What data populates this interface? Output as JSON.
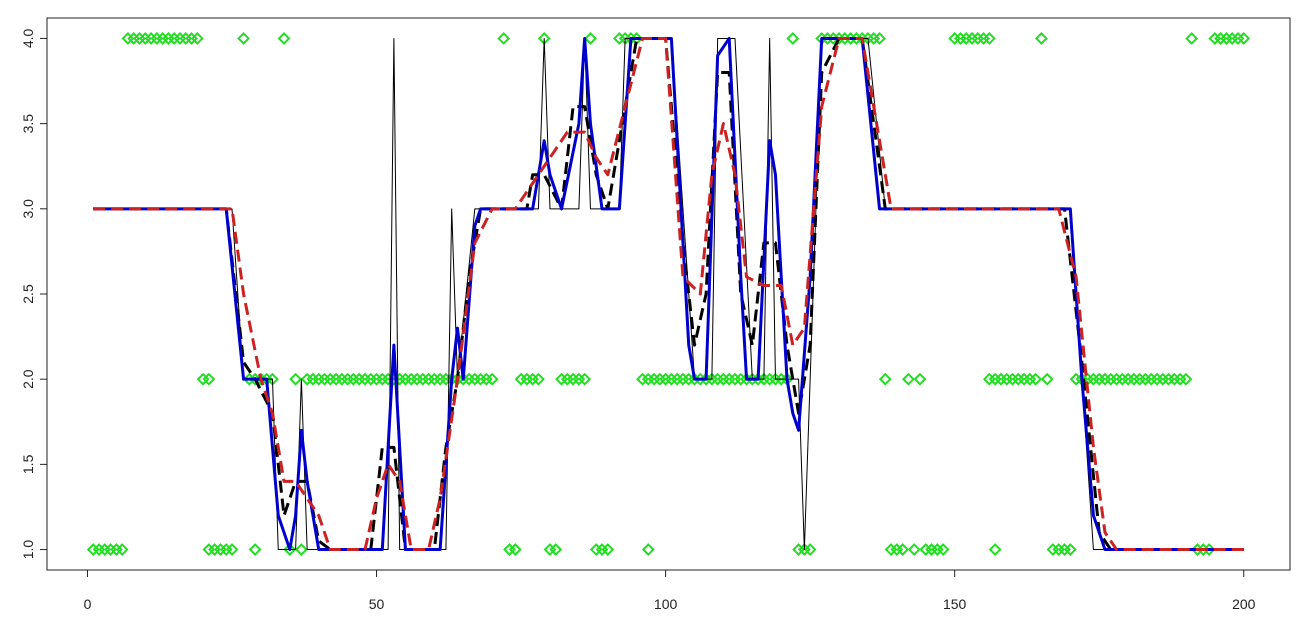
{
  "chart_data": {
    "type": "line",
    "xlim": [
      -7,
      208
    ],
    "ylim": [
      0.88,
      4.12
    ],
    "xticks": [
      0,
      50,
      100,
      150,
      200
    ],
    "yticks": [
      {
        "value": 1,
        "label": "1.0"
      },
      {
        "value": 1.5,
        "label": "1.5"
      },
      {
        "value": 2,
        "label": "2.0"
      },
      {
        "value": 2.5,
        "label": "2.5"
      },
      {
        "value": 3,
        "label": "3.0"
      },
      {
        "value": 3.5,
        "label": "3.5"
      },
      {
        "value": 4,
        "label": "4.0"
      }
    ],
    "series": [
      {
        "type": "scatter",
        "color": "#22dd22",
        "x": [
          1,
          2,
          3,
          4,
          5,
          6,
          21,
          22,
          23,
          24,
          25,
          29,
          35,
          37,
          73,
          74,
          80,
          81,
          88,
          89,
          90,
          97,
          123,
          124,
          125,
          139,
          140,
          141,
          143,
          145,
          146,
          147,
          148,
          157,
          167,
          168,
          169,
          170,
          192,
          193,
          194,
          7,
          8,
          9,
          10,
          11,
          12,
          13,
          14,
          15,
          16,
          17,
          18,
          19,
          27,
          34,
          72,
          79,
          87,
          92,
          93,
          94,
          95,
          122,
          127,
          128,
          129,
          130,
          131,
          132,
          133,
          134,
          135,
          136,
          137,
          150,
          151,
          152,
          153,
          154,
          155,
          156,
          165,
          191,
          195,
          196,
          197,
          198,
          199,
          200,
          20,
          21,
          28,
          29,
          30,
          31,
          32,
          36,
          38,
          39,
          40,
          41,
          42,
          43,
          44,
          45,
          46,
          47,
          48,
          49,
          50,
          51,
          52,
          53,
          54,
          55,
          56,
          57,
          58,
          59,
          60,
          61,
          62,
          63,
          64,
          65,
          66,
          67,
          68,
          69,
          70,
          75,
          76,
          77,
          78,
          82,
          83,
          84,
          85,
          86,
          96,
          97,
          98,
          99,
          100,
          101,
          102,
          103,
          104,
          105,
          106,
          107,
          108,
          109,
          110,
          111,
          112,
          113,
          114,
          115,
          116,
          117,
          118,
          119,
          120,
          121,
          138,
          142,
          144,
          156,
          157,
          158,
          159,
          160,
          161,
          162,
          163,
          164,
          166,
          171,
          172,
          173,
          174,
          175,
          176,
          177,
          178,
          179,
          180,
          181,
          182,
          183,
          184,
          185,
          186,
          187,
          188,
          189,
          190
        ],
        "values": [
          1,
          1,
          1,
          1,
          1,
          1,
          1,
          1,
          1,
          1,
          1,
          1,
          1,
          1,
          1,
          1,
          1,
          1,
          1,
          1,
          1,
          1,
          1,
          1,
          1,
          1,
          1,
          1,
          1,
          1,
          1,
          1,
          1,
          1,
          1,
          1,
          1,
          1,
          1,
          1,
          1,
          4,
          4,
          4,
          4,
          4,
          4,
          4,
          4,
          4,
          4,
          4,
          4,
          4,
          4,
          4,
          4,
          4,
          4,
          4,
          4,
          4,
          4,
          4,
          4,
          4,
          4,
          4,
          4,
          4,
          4,
          4,
          4,
          4,
          4,
          4,
          4,
          4,
          4,
          4,
          4,
          4,
          4,
          4,
          4,
          4,
          4,
          4,
          4,
          4,
          2,
          2,
          2,
          2,
          2,
          2,
          2,
          2,
          2,
          2,
          2,
          2,
          2,
          2,
          2,
          2,
          2,
          2,
          2,
          2,
          2,
          2,
          2,
          2,
          2,
          2,
          2,
          2,
          2,
          2,
          2,
          2,
          2,
          2,
          2,
          2,
          2,
          2,
          2,
          2,
          2,
          2,
          2,
          2,
          2,
          2,
          2,
          2,
          2,
          2,
          2,
          2,
          2,
          2,
          2,
          2,
          2,
          2,
          2,
          2,
          2,
          2,
          2,
          2,
          2,
          2,
          2,
          2,
          2,
          2,
          2,
          2,
          2,
          2,
          2,
          2,
          2,
          2,
          2,
          2,
          2,
          2,
          2,
          2,
          2,
          2,
          2,
          2,
          2,
          2,
          2,
          2,
          2,
          2,
          2,
          2,
          2,
          2,
          2,
          2,
          2,
          2,
          2,
          2,
          2,
          2,
          2,
          2,
          2
        ]
      },
      {
        "type": "line",
        "color": "#000000",
        "width": 1,
        "dashed": false,
        "x": [
          1,
          25,
          27,
          32,
          33,
          36,
          37,
          38,
          52,
          53,
          54,
          62,
          63,
          64,
          67,
          78,
          79,
          80,
          85,
          86,
          87,
          92,
          93,
          101,
          105,
          108,
          109,
          112,
          115,
          117,
          118,
          119,
          123,
          124,
          125,
          127,
          135,
          138,
          170,
          174,
          200
        ],
        "values": [
          3,
          3,
          2,
          2,
          1,
          1,
          2,
          1,
          1,
          4,
          1,
          1,
          3,
          2,
          3,
          3,
          4,
          3,
          3,
          4,
          3,
          3,
          4,
          4,
          2,
          2,
          4,
          4,
          2,
          2,
          4,
          2,
          2,
          1,
          2,
          4,
          4,
          3,
          3,
          1,
          1
        ]
      },
      {
        "type": "line",
        "color": "#000000",
        "width": 3,
        "dashed": true,
        "x": [
          1,
          24,
          27,
          29,
          32,
          34,
          36,
          38,
          40,
          42,
          49,
          51,
          53,
          55,
          60,
          62,
          64,
          66,
          68,
          76,
          77,
          79,
          82,
          84,
          86,
          88,
          90,
          93,
          95,
          100,
          103,
          105,
          107,
          109,
          111,
          113,
          115,
          117,
          119,
          121,
          123,
          125,
          127,
          130,
          134,
          138,
          169,
          172,
          175,
          177,
          200
        ],
        "values": [
          3,
          3,
          2.1,
          2,
          1.8,
          1.2,
          1.4,
          1.4,
          1.05,
          1,
          1,
          1.6,
          1.6,
          1,
          1,
          1.6,
          2,
          2.6,
          3,
          3,
          3.2,
          3.2,
          3,
          3.6,
          3.6,
          3.2,
          3,
          3.6,
          4,
          4,
          2.8,
          2.2,
          2.5,
          3.8,
          3.8,
          2.5,
          2.2,
          2.8,
          2.8,
          2.2,
          1.8,
          2.2,
          3.8,
          4,
          4,
          3,
          3,
          2.1,
          1.1,
          1,
          1
        ]
      },
      {
        "type": "line",
        "color": "#0000cc",
        "width": 3,
        "dashed": false,
        "x": [
          1,
          24,
          27,
          31,
          33,
          35,
          36,
          37,
          38,
          40,
          51,
          53,
          55,
          61,
          63,
          64,
          65,
          67,
          68,
          77,
          79,
          80,
          82,
          85,
          86,
          87,
          89,
          92,
          94,
          101,
          104,
          105,
          107,
          109,
          111,
          113,
          114,
          116,
          118,
          119,
          121,
          122,
          123,
          125,
          127,
          134,
          137,
          170,
          172,
          174,
          176,
          200
        ],
        "values": [
          3,
          3,
          2,
          2,
          1.2,
          1,
          1.2,
          1.7,
          1.4,
          1,
          1,
          2.2,
          1,
          1,
          2,
          2.3,
          2,
          2.9,
          3,
          3,
          3.4,
          3.2,
          3,
          3.5,
          4,
          3.5,
          3,
          3,
          4,
          4,
          2.2,
          2,
          2,
          3.9,
          4,
          2.6,
          2,
          2,
          3.4,
          3.2,
          2,
          1.8,
          1.7,
          2.6,
          4,
          4,
          3,
          3,
          2,
          1.2,
          1,
          1
        ]
      },
      {
        "type": "line",
        "color": "#cc2222",
        "width": 3,
        "dashed": true,
        "x": [
          1,
          25,
          27,
          30,
          32,
          34,
          36,
          38,
          40,
          42,
          48,
          50,
          52,
          54,
          56,
          59,
          61,
          64,
          67,
          70,
          74,
          77,
          80,
          83,
          86,
          88,
          90,
          93,
          96,
          100,
          103,
          106,
          108,
          110,
          112,
          114,
          117,
          120,
          122,
          124,
          127,
          130,
          134,
          136,
          139,
          168,
          171,
          174,
          176,
          178,
          200
        ],
        "values": [
          3,
          3,
          2.5,
          2,
          1.8,
          1.4,
          1.4,
          1.3,
          1.2,
          1,
          1,
          1.3,
          1.5,
          1.4,
          1,
          1,
          1.3,
          2,
          2.8,
          3,
          3,
          3.15,
          3.3,
          3.45,
          3.45,
          3.3,
          3.2,
          3.6,
          4,
          4,
          2.6,
          2.5,
          3.2,
          3.5,
          3.2,
          2.6,
          2.55,
          2.55,
          2.2,
          2.3,
          3.6,
          4,
          4,
          3.6,
          3,
          3,
          2.6,
          1.6,
          1.1,
          1,
          1
        ]
      }
    ]
  }
}
